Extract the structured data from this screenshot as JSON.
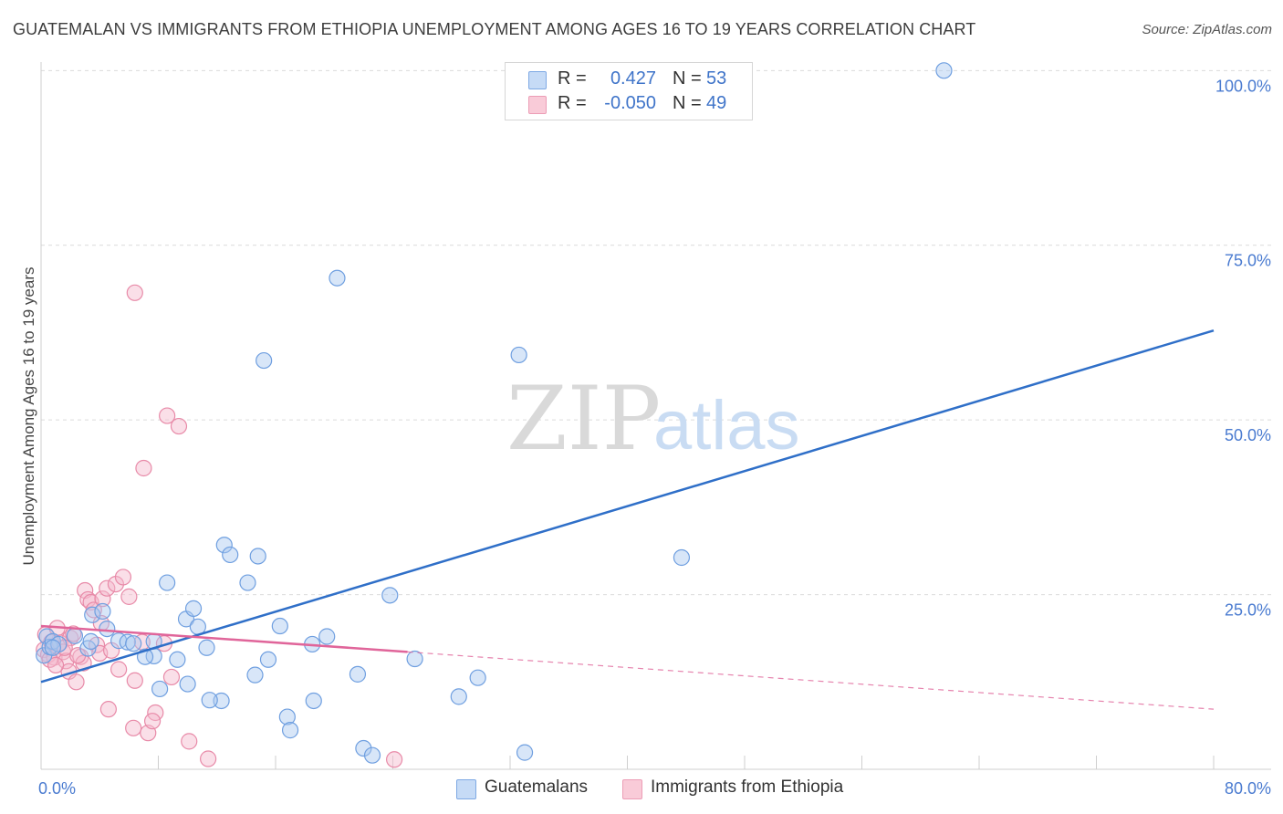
{
  "header": {
    "title": "GUATEMALAN VS IMMIGRANTS FROM ETHIOPIA UNEMPLOYMENT AMONG AGES 16 TO 19 YEARS CORRELATION CHART",
    "source": "Source: ZipAtlas.com"
  },
  "watermark": {
    "zip": "ZIP",
    "atlas": "atlas"
  },
  "legend": {
    "rows": [
      {
        "r_label": "R =",
        "r_value": "0.427",
        "n_label": "N =",
        "n_value": "53",
        "color": "#a9c8ef"
      },
      {
        "r_label": "R =",
        "r_value": "-0.050",
        "n_label": "N =",
        "n_value": "49",
        "color": "#f5b8cb"
      }
    ]
  },
  "bottom_legend": {
    "series1": "Guatemalans",
    "series2": "Immigrants from Ethiopia"
  },
  "colors": {
    "blue_point_fill": "#a9c8ef",
    "blue_point_stroke": "#6f9fe0",
    "blue_line": "#2f6fc8",
    "pink_point_fill": "#f5b8cb",
    "pink_point_stroke": "#e88aa8",
    "pink_line": "#e0659a",
    "grid": "#dcdcdc",
    "tick_text": "#4a7bd0"
  },
  "chart_data": {
    "type": "scatter",
    "title": "GUATEMALAN VS IMMIGRANTS FROM ETHIOPIA UNEMPLOYMENT AMONG AGES 16 TO 19 YEARS CORRELATION CHART",
    "xlabel": "",
    "ylabel": "Unemployment Among Ages 16 to 19 years",
    "xlim": [
      0,
      80
    ],
    "ylim": [
      0,
      102
    ],
    "x_tick_labels": [
      "0.0%",
      "80.0%"
    ],
    "y_ticks": [
      25,
      50,
      75,
      100
    ],
    "y_tick_labels": [
      "25.0%",
      "50.0%",
      "75.0%",
      "100.0%"
    ],
    "grid": true,
    "series": [
      {
        "name": "Guatemalans",
        "r": 0.427,
        "n": 53,
        "points": [
          [
            0.2,
            16.3
          ],
          [
            0.4,
            19.0
          ],
          [
            0.6,
            17.5
          ],
          [
            0.8,
            18.3
          ],
          [
            1.2,
            17.9
          ],
          [
            2.3,
            19.1
          ],
          [
            3.2,
            17.3
          ],
          [
            3.4,
            18.3
          ],
          [
            3.5,
            22.1
          ],
          [
            4.2,
            22.6
          ],
          [
            4.5,
            20.1
          ],
          [
            5.3,
            18.4
          ],
          [
            5.9,
            18.2
          ],
          [
            6.3,
            18.0
          ],
          [
            7.7,
            18.3
          ],
          [
            7.7,
            16.2
          ],
          [
            7.1,
            16.1
          ],
          [
            9.3,
            15.7
          ],
          [
            8.6,
            26.7
          ],
          [
            9.9,
            21.5
          ],
          [
            10.4,
            23.0
          ],
          [
            10.7,
            20.4
          ],
          [
            11.3,
            17.4
          ],
          [
            10.0,
            12.2
          ],
          [
            8.1,
            11.5
          ],
          [
            12.3,
            9.8
          ],
          [
            11.5,
            9.9
          ],
          [
            12.5,
            32.1
          ],
          [
            12.9,
            30.7
          ],
          [
            14.1,
            26.7
          ],
          [
            14.6,
            13.5
          ],
          [
            14.8,
            30.5
          ],
          [
            15.2,
            58.5
          ],
          [
            15.5,
            15.7
          ],
          [
            16.3,
            20.5
          ],
          [
            16.8,
            7.5
          ],
          [
            17.0,
            5.6
          ],
          [
            18.5,
            17.9
          ],
          [
            18.6,
            9.8
          ],
          [
            19.5,
            19.0
          ],
          [
            20.2,
            70.3
          ],
          [
            21.6,
            13.6
          ],
          [
            22.0,
            3.0
          ],
          [
            22.6,
            2.0
          ],
          [
            23.8,
            24.9
          ],
          [
            25.5,
            15.8
          ],
          [
            28.5,
            10.4
          ],
          [
            29.8,
            13.1
          ],
          [
            32.6,
            59.3
          ],
          [
            33.0,
            2.4
          ],
          [
            43.7,
            30.3
          ],
          [
            61.6,
            100.0
          ],
          [
            0.8,
            17.4
          ]
        ],
        "trendline": {
          "x": [
            0,
            80
          ],
          "y": [
            12.5,
            62.8
          ]
        }
      },
      {
        "name": "Immigrants from Ethiopia",
        "r": -0.05,
        "n": 49,
        "points": [
          [
            0.2,
            17.1
          ],
          [
            0.3,
            19.3
          ],
          [
            0.5,
            16.4
          ],
          [
            0.7,
            18.2
          ],
          [
            0.9,
            16.0
          ],
          [
            1.1,
            20.2
          ],
          [
            1.3,
            18.1
          ],
          [
            1.5,
            16.8
          ],
          [
            1.7,
            15.5
          ],
          [
            1.9,
            14.0
          ],
          [
            2.0,
            18.8
          ],
          [
            2.2,
            19.4
          ],
          [
            2.4,
            12.5
          ],
          [
            2.7,
            16.1
          ],
          [
            2.9,
            15.2
          ],
          [
            3.0,
            25.6
          ],
          [
            3.2,
            24.3
          ],
          [
            3.4,
            23.9
          ],
          [
            3.6,
            22.8
          ],
          [
            3.8,
            17.8
          ],
          [
            4.0,
            16.6
          ],
          [
            4.1,
            20.9
          ],
          [
            4.2,
            24.4
          ],
          [
            4.5,
            25.9
          ],
          [
            4.6,
            8.6
          ],
          [
            4.8,
            17.0
          ],
          [
            5.1,
            26.5
          ],
          [
            5.3,
            14.3
          ],
          [
            5.6,
            27.5
          ],
          [
            6.0,
            24.7
          ],
          [
            6.3,
            5.9
          ],
          [
            6.4,
            12.7
          ],
          [
            6.4,
            68.2
          ],
          [
            6.9,
            18.2
          ],
          [
            7.0,
            43.1
          ],
          [
            7.3,
            5.2
          ],
          [
            7.8,
            8.1
          ],
          [
            7.6,
            6.9
          ],
          [
            8.4,
            18.0
          ],
          [
            8.6,
            50.6
          ],
          [
            8.9,
            13.2
          ],
          [
            9.4,
            49.1
          ],
          [
            10.1,
            4.0
          ],
          [
            11.4,
            1.5
          ],
          [
            24.1,
            1.4
          ],
          [
            0.6,
            15.7
          ],
          [
            1.6,
            17.4
          ],
          [
            2.5,
            16.3
          ],
          [
            1.0,
            14.9
          ]
        ],
        "trendline": {
          "x": [
            0,
            25
          ],
          "y": [
            20.5,
            16.8
          ]
        },
        "trendline_dashed": {
          "x": [
            25,
            80
          ],
          "y": [
            16.8,
            8.6
          ]
        }
      }
    ]
  }
}
